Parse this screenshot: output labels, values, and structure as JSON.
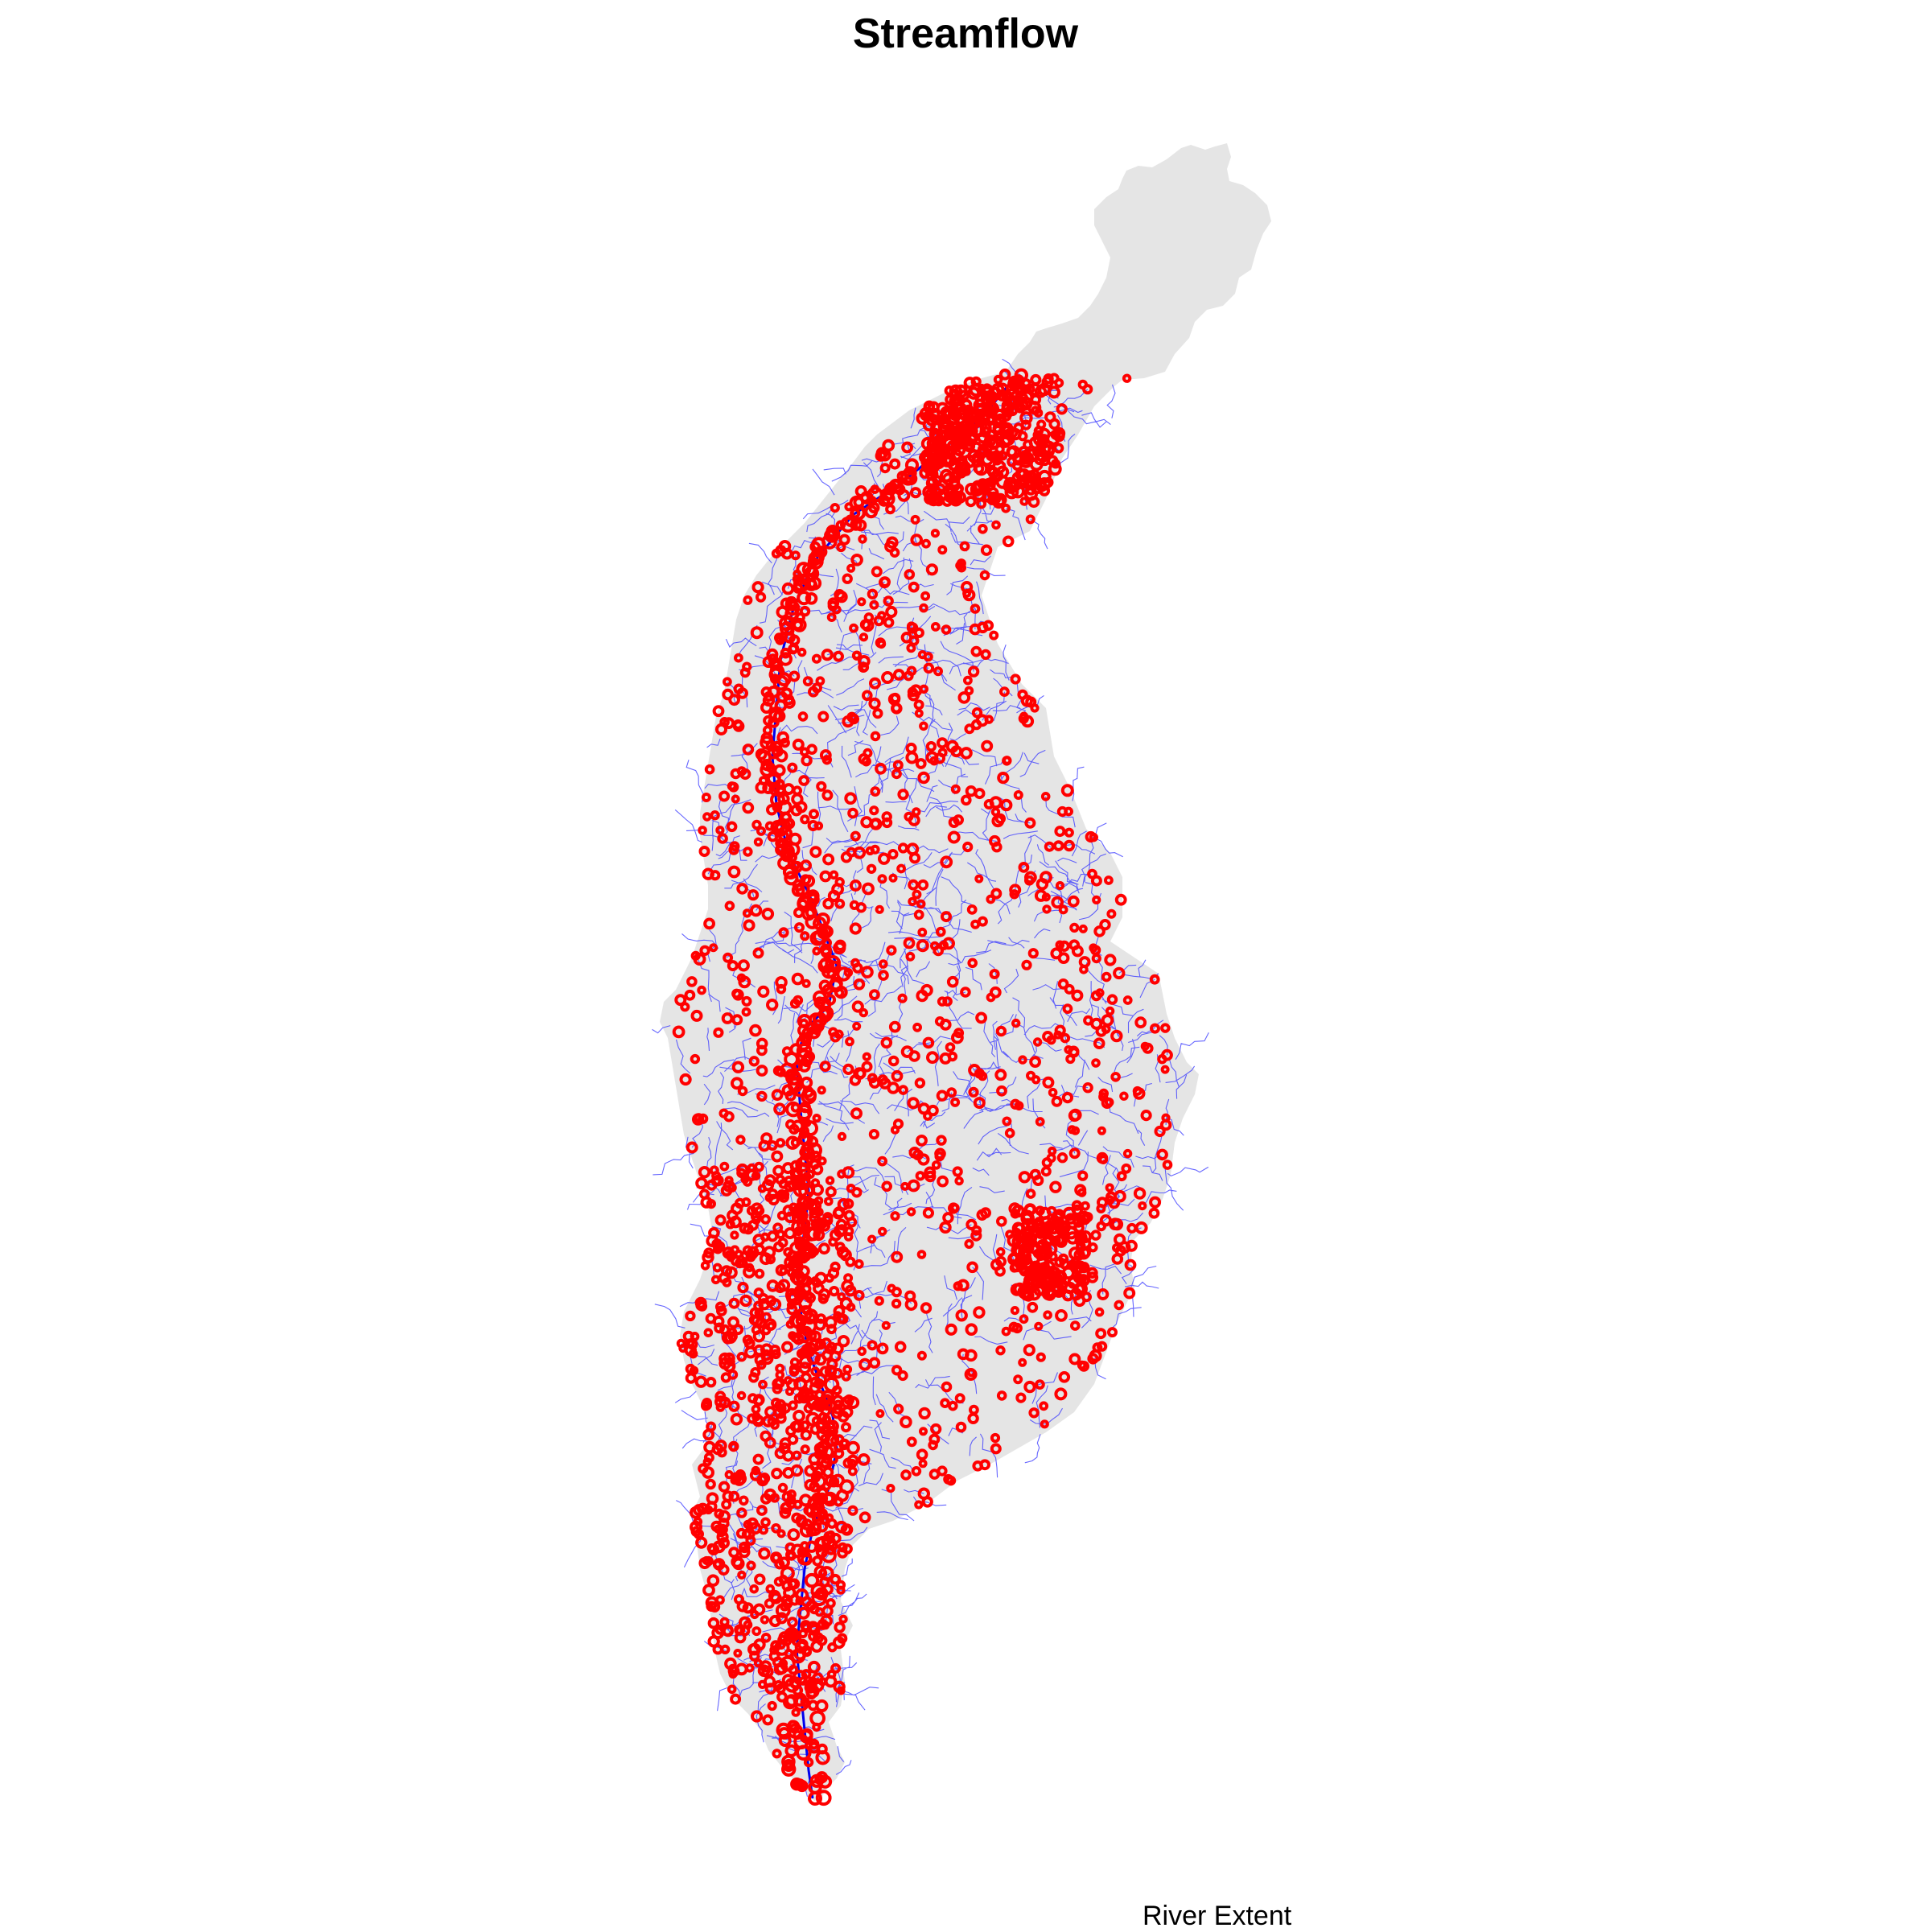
{
  "title": "Streamflow",
  "legend": {
    "label": "River Extent"
  },
  "colors": {
    "basin_fill": "#e5e5e5",
    "stream_lines": "#3333ff",
    "main_channel": "#0000ee",
    "point_markers": "#ff0000",
    "background": "#ffffff"
  },
  "layers": [
    "basin-polygon",
    "stream-network",
    "main-channel",
    "streamflow-points"
  ]
}
